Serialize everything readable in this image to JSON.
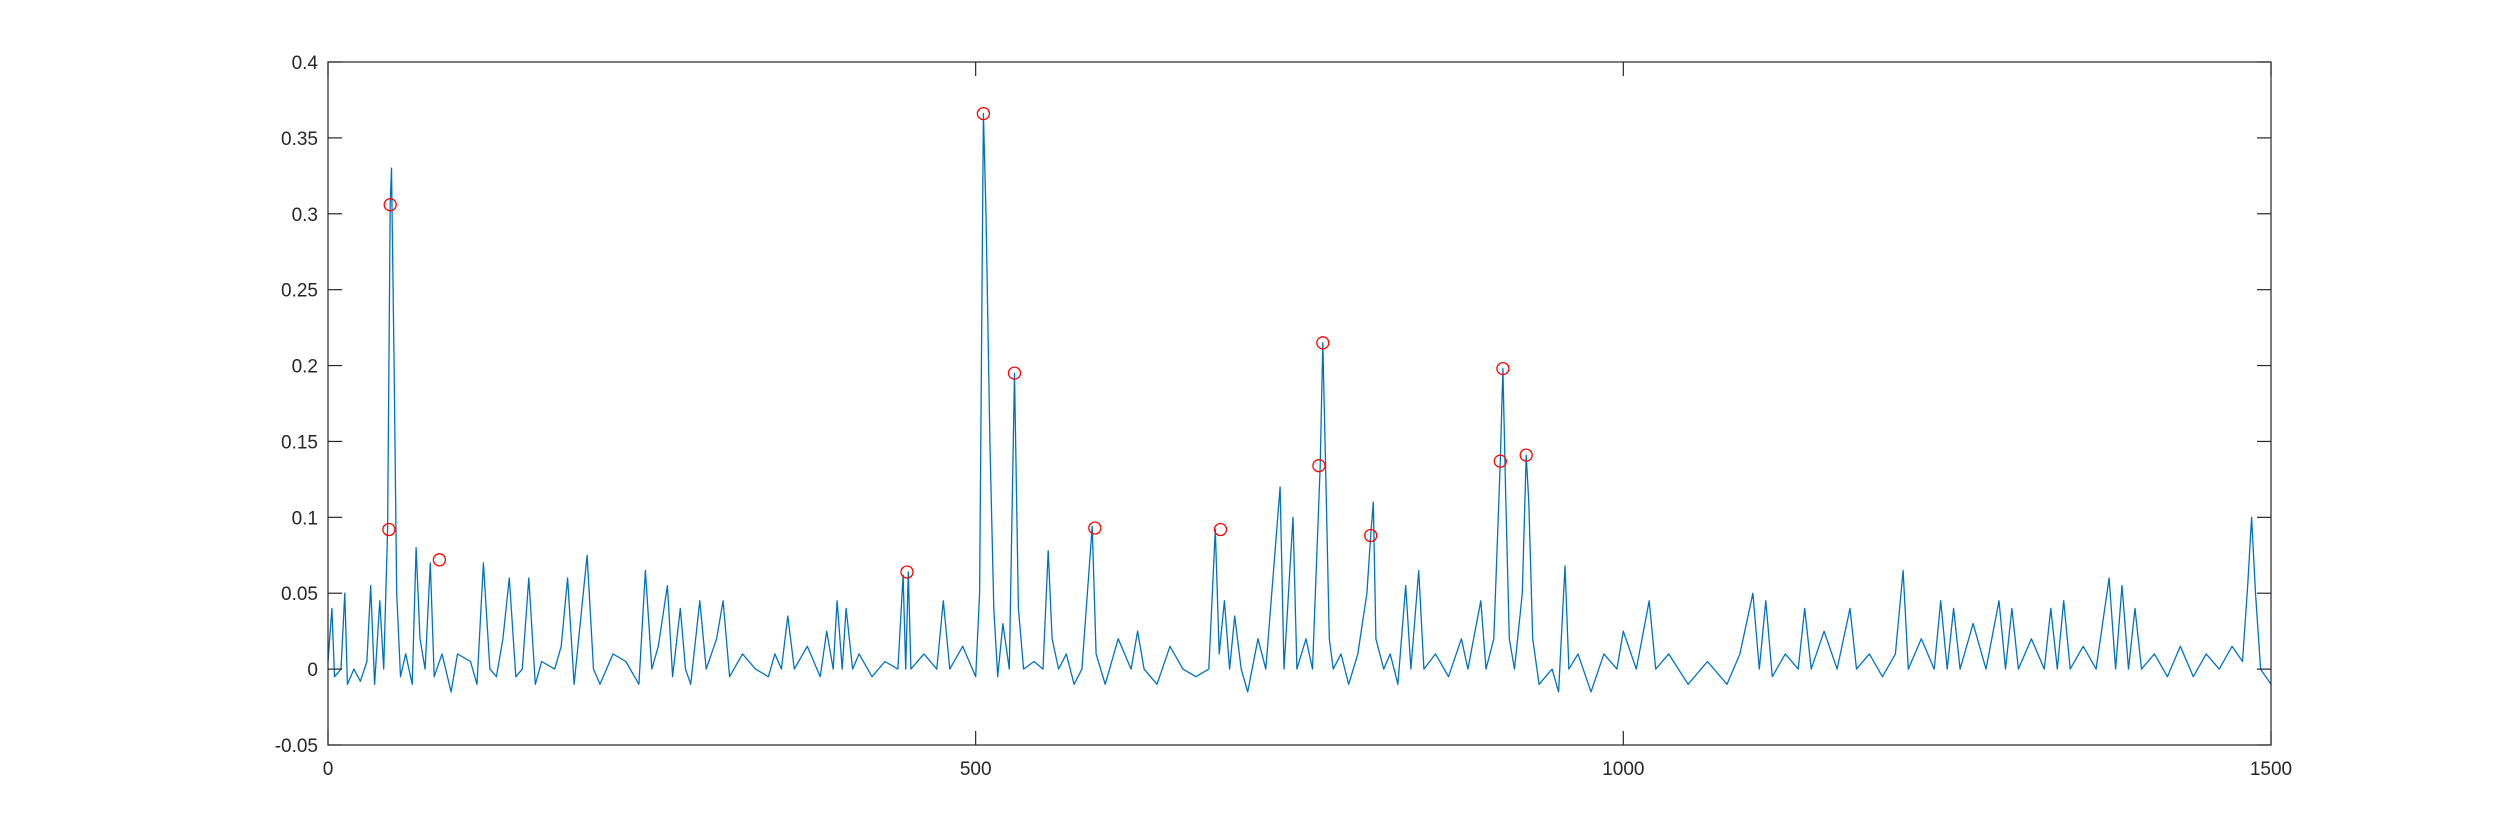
{
  "chart_data": {
    "type": "line",
    "title": "",
    "xlabel": "",
    "ylabel": "",
    "xlim": [
      0,
      1500
    ],
    "ylim": [
      -0.05,
      0.4
    ],
    "grid": false,
    "box": true,
    "x_ticks": [
      0,
      500,
      1000,
      1500
    ],
    "x_tick_labels": [
      "0",
      "500",
      "1000",
      "1500"
    ],
    "y_ticks": [
      -0.05,
      0,
      0.05,
      0.1,
      0.15,
      0.2,
      0.25,
      0.3,
      0.35,
      0.4
    ],
    "y_tick_labels": [
      "-0.05",
      "0",
      "0.05",
      "0.1",
      "0.15",
      "0.2",
      "0.25",
      "0.3",
      "0.35",
      "0.4"
    ],
    "line_color": "#0072BD",
    "marker_color": "#FF0000",
    "series": [
      {
        "values": [
          [
            0,
            0.005
          ],
          [
            3,
            0.04
          ],
          [
            5,
            -0.005
          ],
          [
            10,
            0.0
          ],
          [
            13,
            0.05
          ],
          [
            15,
            -0.01
          ],
          [
            20,
            0.0
          ],
          [
            25,
            -0.008
          ],
          [
            30,
            0.005
          ],
          [
            33,
            0.055
          ],
          [
            36,
            -0.01
          ],
          [
            40,
            0.045
          ],
          [
            43,
            0.0
          ],
          [
            46,
            0.092
          ],
          [
            48,
            0.306
          ],
          [
            49,
            0.33
          ],
          [
            51,
            0.2
          ],
          [
            53,
            0.05
          ],
          [
            56,
            -0.005
          ],
          [
            60,
            0.01
          ],
          [
            65,
            -0.01
          ],
          [
            68,
            0.08
          ],
          [
            71,
            0.02
          ],
          [
            75,
            0.0
          ],
          [
            79,
            0.07
          ],
          [
            82,
            -0.005
          ],
          [
            88,
            0.01
          ],
          [
            95,
            -0.015
          ],
          [
            100,
            0.01
          ],
          [
            110,
            0.005
          ],
          [
            115,
            -0.01
          ],
          [
            120,
            0.07
          ],
          [
            125,
            0.0
          ],
          [
            130,
            -0.005
          ],
          [
            135,
            0.02
          ],
          [
            140,
            0.06
          ],
          [
            145,
            -0.005
          ],
          [
            150,
            0.0
          ],
          [
            155,
            0.06
          ],
          [
            160,
            -0.01
          ],
          [
            165,
            0.005
          ],
          [
            175,
            0.0
          ],
          [
            180,
            0.015
          ],
          [
            185,
            0.06
          ],
          [
            190,
            -0.01
          ],
          [
            200,
            0.075
          ],
          [
            205,
            0.0
          ],
          [
            210,
            -0.01
          ],
          [
            220,
            0.01
          ],
          [
            230,
            0.005
          ],
          [
            240,
            -0.01
          ],
          [
            245,
            0.065
          ],
          [
            250,
            0.0
          ],
          [
            255,
            0.015
          ],
          [
            262,
            0.055
          ],
          [
            266,
            -0.005
          ],
          [
            272,
            0.04
          ],
          [
            276,
            0.0
          ],
          [
            280,
            -0.01
          ],
          [
            287,
            0.045
          ],
          [
            292,
            0.0
          ],
          [
            300,
            0.02
          ],
          [
            305,
            0.045
          ],
          [
            310,
            -0.005
          ],
          [
            320,
            0.01
          ],
          [
            330,
            0.0
          ],
          [
            340,
            -0.005
          ],
          [
            345,
            0.01
          ],
          [
            350,
            0.0
          ],
          [
            355,
            0.035
          ],
          [
            360,
            0.0
          ],
          [
            370,
            0.015
          ],
          [
            380,
            -0.005
          ],
          [
            385,
            0.025
          ],
          [
            390,
            0.0
          ],
          [
            393,
            0.045
          ],
          [
            397,
            0.0
          ],
          [
            400,
            0.04
          ],
          [
            405,
            0.0
          ],
          [
            410,
            0.01
          ],
          [
            420,
            -0.005
          ],
          [
            430,
            0.005
          ],
          [
            440,
            0.0
          ],
          [
            444,
            0.062
          ],
          [
            446,
            0.0
          ],
          [
            448,
            0.064
          ],
          [
            450,
            0.0
          ],
          [
            460,
            0.01
          ],
          [
            470,
            0.0
          ],
          [
            475,
            0.045
          ],
          [
            480,
            0.0
          ],
          [
            490,
            0.015
          ],
          [
            500,
            -0.005
          ],
          [
            503,
            0.05
          ],
          [
            506,
            0.366
          ],
          [
            508,
            0.3
          ],
          [
            511,
            0.15
          ],
          [
            514,
            0.04
          ],
          [
            517,
            -0.005
          ],
          [
            521,
            0.03
          ],
          [
            526,
            0.0
          ],
          [
            530,
            0.195
          ],
          [
            533,
            0.04
          ],
          [
            537,
            0.0
          ],
          [
            545,
            0.005
          ],
          [
            552,
            0.0
          ],
          [
            556,
            0.078
          ],
          [
            559,
            0.02
          ],
          [
            564,
            0.0
          ],
          [
            570,
            0.01
          ],
          [
            576,
            -0.01
          ],
          [
            582,
            0.0
          ],
          [
            590,
            0.094
          ],
          [
            593,
            0.01
          ],
          [
            600,
            -0.01
          ],
          [
            610,
            0.02
          ],
          [
            620,
            0.0
          ],
          [
            625,
            0.025
          ],
          [
            630,
            0.0
          ],
          [
            640,
            -0.01
          ],
          [
            650,
            0.015
          ],
          [
            660,
            0.0
          ],
          [
            670,
            -0.005
          ],
          [
            680,
            0.0
          ],
          [
            685,
            0.092
          ],
          [
            688,
            0.01
          ],
          [
            692,
            0.045
          ],
          [
            696,
            0.0
          ],
          [
            700,
            0.035
          ],
          [
            705,
            0.0
          ],
          [
            710,
            -0.015
          ],
          [
            718,
            0.02
          ],
          [
            724,
            0.0
          ],
          [
            735,
            0.12
          ],
          [
            738,
            0.0
          ],
          [
            745,
            0.1
          ],
          [
            748,
            0.0
          ],
          [
            755,
            0.02
          ],
          [
            760,
            0.0
          ],
          [
            766,
            0.134
          ],
          [
            768,
            0.215
          ],
          [
            770,
            0.14
          ],
          [
            773,
            0.02
          ],
          [
            776,
            0.0
          ],
          [
            782,
            0.01
          ],
          [
            788,
            -0.01
          ],
          [
            795,
            0.01
          ],
          [
            802,
            0.05
          ],
          [
            805,
            0.088
          ],
          [
            807,
            0.11
          ],
          [
            809,
            0.02
          ],
          [
            815,
            0.0
          ],
          [
            820,
            0.01
          ],
          [
            826,
            -0.01
          ],
          [
            832,
            0.055
          ],
          [
            836,
            0.0
          ],
          [
            842,
            0.065
          ],
          [
            846,
            0.0
          ],
          [
            855,
            0.01
          ],
          [
            865,
            -0.005
          ],
          [
            875,
            0.02
          ],
          [
            880,
            0.0
          ],
          [
            890,
            0.045
          ],
          [
            894,
            0.0
          ],
          [
            900,
            0.02
          ],
          [
            905,
            0.137
          ],
          [
            907,
            0.198
          ],
          [
            909,
            0.12
          ],
          [
            912,
            0.02
          ],
          [
            916,
            0.0
          ],
          [
            922,
            0.05
          ],
          [
            925,
            0.141
          ],
          [
            927,
            0.11
          ],
          [
            930,
            0.02
          ],
          [
            935,
            -0.01
          ],
          [
            945,
            0.0
          ],
          [
            950,
            -0.015
          ],
          [
            955,
            0.068
          ],
          [
            958,
            0.0
          ],
          [
            965,
            0.01
          ],
          [
            975,
            -0.015
          ],
          [
            985,
            0.01
          ],
          [
            995,
            0.0
          ],
          [
            1000,
            0.025
          ],
          [
            1010,
            0.0
          ],
          [
            1020,
            0.045
          ],
          [
            1025,
            0.0
          ],
          [
            1035,
            0.01
          ],
          [
            1050,
            -0.01
          ],
          [
            1065,
            0.005
          ],
          [
            1080,
            -0.01
          ],
          [
            1090,
            0.01
          ],
          [
            1100,
            0.05
          ],
          [
            1105,
            0.0
          ],
          [
            1110,
            0.045
          ],
          [
            1115,
            -0.005
          ],
          [
            1125,
            0.01
          ],
          [
            1135,
            0.0
          ],
          [
            1140,
            0.04
          ],
          [
            1145,
            0.0
          ],
          [
            1155,
            0.025
          ],
          [
            1165,
            0.0
          ],
          [
            1175,
            0.04
          ],
          [
            1180,
            0.0
          ],
          [
            1190,
            0.01
          ],
          [
            1200,
            -0.005
          ],
          [
            1210,
            0.01
          ],
          [
            1216,
            0.065
          ],
          [
            1220,
            0.0
          ],
          [
            1230,
            0.02
          ],
          [
            1240,
            0.0
          ],
          [
            1245,
            0.045
          ],
          [
            1250,
            0.0
          ],
          [
            1255,
            0.04
          ],
          [
            1260,
            0.0
          ],
          [
            1270,
            0.03
          ],
          [
            1280,
            0.0
          ],
          [
            1290,
            0.045
          ],
          [
            1295,
            0.0
          ],
          [
            1300,
            0.04
          ],
          [
            1305,
            0.0
          ],
          [
            1315,
            0.02
          ],
          [
            1325,
            0.0
          ],
          [
            1330,
            0.04
          ],
          [
            1335,
            0.0
          ],
          [
            1340,
            0.045
          ],
          [
            1345,
            0.0
          ],
          [
            1355,
            0.015
          ],
          [
            1365,
            0.0
          ],
          [
            1375,
            0.06
          ],
          [
            1380,
            0.0
          ],
          [
            1385,
            0.055
          ],
          [
            1390,
            0.0
          ],
          [
            1395,
            0.04
          ],
          [
            1400,
            0.0
          ],
          [
            1410,
            0.01
          ],
          [
            1420,
            -0.005
          ],
          [
            1430,
            0.015
          ],
          [
            1440,
            -0.005
          ],
          [
            1450,
            0.01
          ],
          [
            1460,
            0.0
          ],
          [
            1470,
            0.015
          ],
          [
            1478,
            0.005
          ],
          [
            1482,
            0.055
          ],
          [
            1485,
            0.1
          ],
          [
            1488,
            0.05
          ],
          [
            1492,
            0.0
          ],
          [
            1500,
            -0.01
          ]
        ]
      }
    ],
    "markers": [
      [
        47,
        0.092
      ],
      [
        48,
        0.306
      ],
      [
        86,
        0.072
      ],
      [
        447,
        0.064
      ],
      [
        506,
        0.366
      ],
      [
        530,
        0.195
      ],
      [
        592,
        0.093
      ],
      [
        689,
        0.092
      ],
      [
        765,
        0.134
      ],
      [
        768,
        0.215
      ],
      [
        805,
        0.088
      ],
      [
        905,
        0.137
      ],
      [
        907,
        0.198
      ],
      [
        925,
        0.141
      ]
    ]
  }
}
